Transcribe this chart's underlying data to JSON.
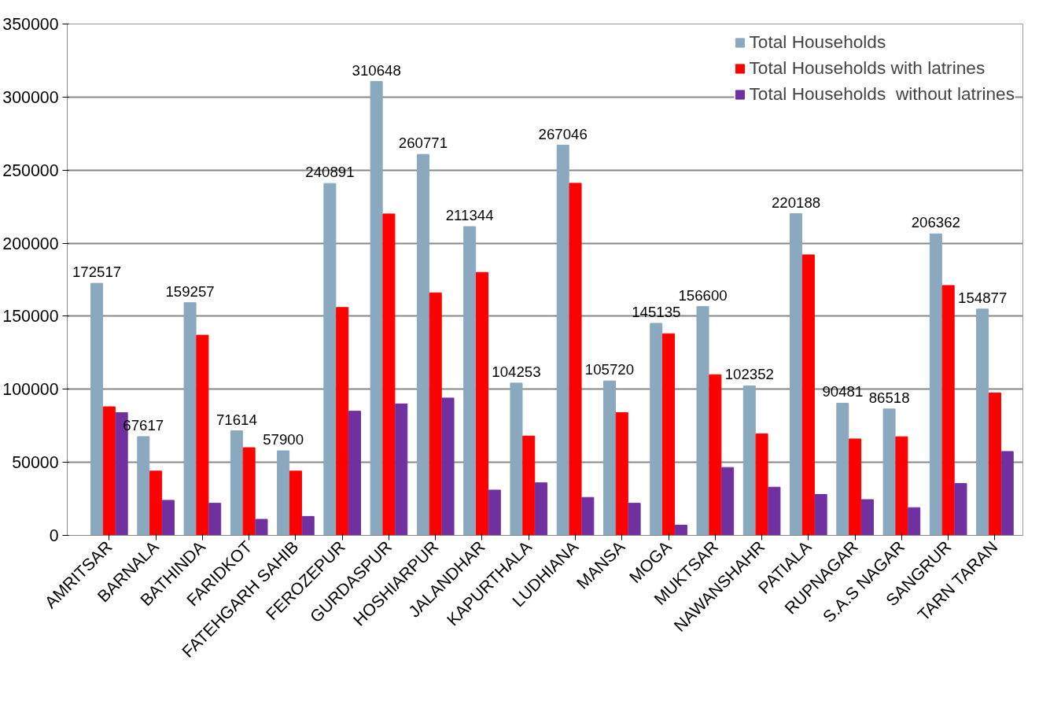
{
  "chart_data": {
    "type": "bar",
    "categories": [
      "AMRITSAR",
      "BARNALA",
      "BATHINDA",
      "FARIDKOT",
      "FATEHGARH SAHIB",
      "FEROZEPUR",
      "GURDASPUR",
      "HOSHIARPUR",
      "JALANDHAR",
      "KAPURTHALA",
      "LUDHIANA",
      "MANSA",
      "MOGA",
      "MUKTSAR",
      "NAWANSHAHR",
      "PATIALA",
      "RUPNAGAR",
      "S.A.S NAGAR",
      "SANGRUR",
      "TARN TARAN"
    ],
    "series": [
      {
        "name": "Total Households",
        "color": "#8aa9bf",
        "values": [
          172517,
          67617,
          159257,
          71614,
          57900,
          240891,
          310648,
          260771,
          211344,
          104253,
          267046,
          105720,
          145135,
          156600,
          102352,
          220188,
          90481,
          86518,
          206362,
          154877
        ],
        "value_labels": [
          "172517",
          "67617",
          "159257",
          "71614",
          "57900",
          "240891",
          "310648",
          "260771",
          "211344",
          "104253",
          "267046",
          "105720",
          "145135",
          "156600",
          "102352",
          "220188",
          "90481",
          "86518",
          "206362",
          "154877"
        ]
      },
      {
        "name": "Total Households with latrines",
        "color": "#ff0000",
        "values": [
          88000,
          44000,
          137000,
          60000,
          44000,
          156000,
          220000,
          166000,
          180000,
          68000,
          241000,
          84000,
          138000,
          110000,
          69500,
          192000,
          66000,
          67500,
          171000,
          97500
        ]
      },
      {
        "name": "Total Households  without latrines",
        "color": "#7030a0",
        "values": [
          84000,
          24000,
          22000,
          11000,
          13000,
          85000,
          90000,
          94000,
          31000,
          36000,
          26000,
          22000,
          7000,
          46500,
          33000,
          28000,
          24500,
          19000,
          35500,
          57400
        ]
      }
    ],
    "ylim": [
      0,
      350000
    ],
    "yticks": [
      0,
      50000,
      100000,
      150000,
      200000,
      250000,
      300000,
      350000
    ],
    "grid": "y",
    "legend": "top right"
  }
}
